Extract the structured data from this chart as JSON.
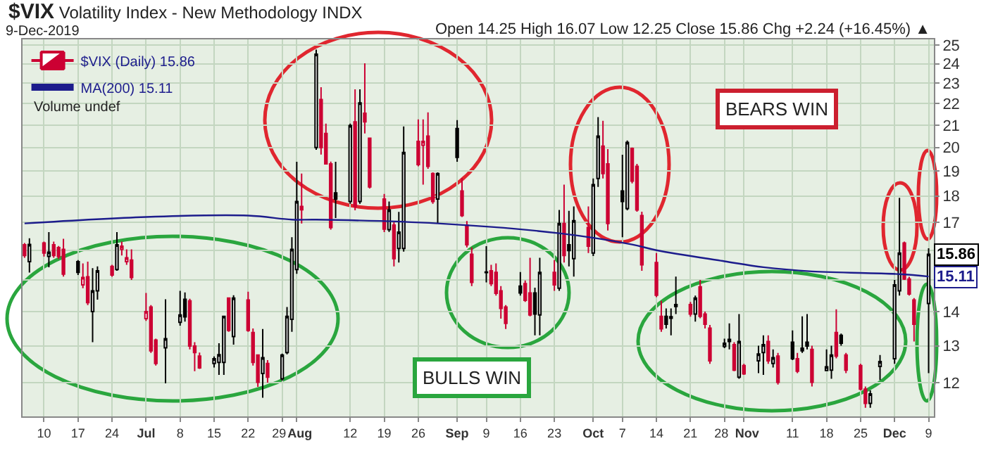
{
  "chart_data": {
    "type": "candlestick",
    "title": "$VIX Volatility Index - New Methodology INDX",
    "subtitle": "9-Dec-2019",
    "x": [
      "2019-06-06",
      "2019-06-07",
      "2019-06-10",
      "2019-06-11",
      "2019-06-12",
      "2019-06-13",
      "2019-06-14",
      "2019-06-17",
      "2019-06-18",
      "2019-06-19",
      "2019-06-20",
      "2019-06-21",
      "2019-06-24",
      "2019-06-25",
      "2019-06-26",
      "2019-06-27",
      "2019-06-28",
      "2019-07-01",
      "2019-07-02",
      "2019-07-03",
      "2019-07-05",
      "2019-07-08",
      "2019-07-09",
      "2019-07-10",
      "2019-07-11",
      "2019-07-12",
      "2019-07-15",
      "2019-07-16",
      "2019-07-17",
      "2019-07-18",
      "2019-07-19",
      "2019-07-22",
      "2019-07-23",
      "2019-07-24",
      "2019-07-25",
      "2019-07-26",
      "2019-07-29",
      "2019-07-30",
      "2019-07-31",
      "2019-08-01",
      "2019-08-02",
      "2019-08-05",
      "2019-08-06",
      "2019-08-07",
      "2019-08-08",
      "2019-08-09",
      "2019-08-12",
      "2019-08-13",
      "2019-08-14",
      "2019-08-15",
      "2019-08-16",
      "2019-08-19",
      "2019-08-20",
      "2019-08-21",
      "2019-08-22",
      "2019-08-23",
      "2019-08-26",
      "2019-08-27",
      "2019-08-28",
      "2019-08-29",
      "2019-08-30",
      "2019-09-03",
      "2019-09-04",
      "2019-09-05",
      "2019-09-06",
      "2019-09-09",
      "2019-09-10",
      "2019-09-11",
      "2019-09-12",
      "2019-09-13",
      "2019-09-16",
      "2019-09-17",
      "2019-09-18",
      "2019-09-19",
      "2019-09-20",
      "2019-09-23",
      "2019-09-24",
      "2019-09-25",
      "2019-09-26",
      "2019-09-27",
      "2019-09-30",
      "2019-10-01",
      "2019-10-02",
      "2019-10-03",
      "2019-10-04",
      "2019-10-07",
      "2019-10-08",
      "2019-10-09",
      "2019-10-10",
      "2019-10-11",
      "2019-10-14",
      "2019-10-15",
      "2019-10-16",
      "2019-10-17",
      "2019-10-18",
      "2019-10-21",
      "2019-10-22",
      "2019-10-23",
      "2019-10-24",
      "2019-10-25",
      "2019-10-28",
      "2019-10-29",
      "2019-10-30",
      "2019-10-31",
      "2019-11-01",
      "2019-11-04",
      "2019-11-05",
      "2019-11-06",
      "2019-11-07",
      "2019-11-08",
      "2019-11-11",
      "2019-11-12",
      "2019-11-13",
      "2019-11-14",
      "2019-11-15",
      "2019-11-18",
      "2019-11-19",
      "2019-11-20",
      "2019-11-21",
      "2019-11-22",
      "2019-11-25",
      "2019-11-26",
      "2019-11-27",
      "2019-11-29",
      "2019-12-02",
      "2019-12-03",
      "2019-12-04",
      "2019-12-05",
      "2019-12-06",
      "2019-12-09"
    ],
    "series": [
      {
        "type": "candlestick",
        "name": "$VIX (Daily) 15.86",
        "ohlc": [
          [
            16.19,
            16.25,
            15.74,
            15.82
          ],
          [
            15.61,
            16.42,
            15.24,
            16.2
          ],
          [
            16.25,
            16.3,
            15.78,
            15.9
          ],
          [
            15.79,
            16.64,
            15.42,
            15.93
          ],
          [
            16.19,
            16.3,
            15.74,
            15.82
          ],
          [
            16.09,
            16.15,
            15.7,
            15.78
          ],
          [
            16.03,
            16.4,
            15.11,
            15.19
          ],
          [
            15.61,
            15.66,
            15.16,
            15.25
          ],
          [
            14.84,
            15.55,
            14.73,
            15.08
          ],
          [
            15.1,
            15.61,
            14.2,
            14.28
          ],
          [
            14.0,
            15.39,
            13.1,
            14.65
          ],
          [
            14.65,
            15.45,
            14.37,
            15.3
          ],
          [
            15.45,
            15.5,
            15.1,
            15.16
          ],
          [
            15.34,
            16.64,
            15.3,
            16.19
          ],
          [
            16.03,
            16.3,
            15.82,
            16.14
          ],
          [
            15.61,
            16.03,
            15.5,
            15.74
          ],
          [
            15.66,
            16.03,
            15.0,
            15.08
          ],
          [
            13.79,
            14.58,
            13.72,
            14.0
          ],
          [
            14.14,
            14.2,
            12.8,
            12.86
          ],
          [
            13.16,
            13.2,
            12.45,
            12.51
          ],
          [
            12.94,
            14.38,
            11.98,
            13.2
          ],
          [
            13.68,
            14.65,
            13.58,
            13.9
          ],
          [
            14.38,
            14.6,
            13.7,
            13.84
          ],
          [
            14.33,
            14.4,
            12.9,
            12.99
          ],
          [
            12.99,
            13.1,
            12.3,
            12.81
          ],
          [
            12.71,
            12.81,
            12.36,
            12.39
          ],
          [
            12.51,
            12.7,
            12.4,
            12.64
          ],
          [
            12.54,
            13.07,
            12.2,
            12.75
          ],
          [
            12.54,
            13.86,
            12.2,
            13.86
          ],
          [
            14.42,
            14.42,
            13.4,
            13.44
          ],
          [
            13.26,
            14.51,
            13.03,
            14.42
          ],
          [
            14.36,
            14.62,
            13.4,
            13.44
          ],
          [
            13.38,
            13.5,
            12.45,
            12.54
          ],
          [
            12.74,
            12.74,
            11.89,
            12.01
          ],
          [
            12.24,
            13.48,
            11.61,
            12.67
          ],
          [
            12.51,
            12.6,
            12.0,
            12.14
          ],
          [
            12.1,
            12.78,
            12.05,
            12.74
          ],
          [
            12.81,
            14.14,
            12.76,
            13.86
          ],
          [
            13.77,
            16.46,
            13.4,
            16.03
          ],
          [
            15.34,
            19.39,
            15.2,
            17.79
          ],
          [
            17.6,
            18.9,
            16.96,
            17.47
          ],
          [
            20.0,
            24.75,
            19.9,
            24.5
          ],
          [
            22.2,
            22.8,
            19.7,
            20.0
          ],
          [
            20.62,
            21.07,
            19.27,
            19.3
          ],
          [
            19.3,
            19.4,
            16.73,
            16.81
          ],
          [
            18.12,
            19.39,
            17.16,
            17.88
          ],
          [
            17.79,
            21.07,
            17.7,
            20.98
          ],
          [
            21.15,
            22.7,
            17.45,
            17.6
          ],
          [
            17.79,
            22.7,
            17.7,
            22.04
          ],
          [
            21.55,
            24.02,
            20.62,
            21.15
          ],
          [
            20.41,
            20.41,
            18.3,
            18.36
          ],
          [
            17.88,
            18.08,
            16.64,
            16.75
          ],
          [
            16.73,
            17.79,
            16.65,
            17.46
          ],
          [
            16.9,
            17.0,
            15.45,
            15.71
          ],
          [
            16.06,
            17.39,
            15.58,
            16.64
          ],
          [
            16.06,
            20.94,
            15.95,
            19.79
          ],
          [
            20.27,
            21.26,
            19.2,
            19.27
          ],
          [
            20.1,
            21.26,
            18.45,
            20.27
          ],
          [
            20.5,
            21.59,
            19.1,
            19.2
          ],
          [
            18.9,
            18.95,
            17.7,
            17.79
          ],
          [
            17.88,
            18.95,
            16.96,
            18.9
          ],
          [
            20.84,
            21.23,
            19.39,
            19.58
          ],
          [
            18.2,
            18.72,
            17.2,
            17.25
          ],
          [
            16.9,
            17.05,
            16.1,
            16.19
          ],
          [
            15.86,
            16.1,
            14.8,
            14.92
          ],
          [
            15.26,
            16.14,
            14.92,
            15.24
          ],
          [
            15.3,
            15.5,
            14.8,
            14.88
          ],
          [
            15.25,
            15.55,
            14.5,
            14.57
          ],
          [
            14.65,
            14.8,
            13.79,
            14.1
          ],
          [
            14.14,
            14.2,
            13.48,
            13.65
          ],
          [
            14.8,
            15.26,
            14.5,
            14.58
          ],
          [
            14.88,
            14.98,
            14.3,
            14.35
          ],
          [
            14.58,
            15.74,
            13.86,
            13.9
          ],
          [
            14.58,
            14.75,
            13.3,
            13.93
          ],
          [
            13.9,
            15.74,
            13.3,
            15.25
          ],
          [
            15.25,
            15.66,
            14.65,
            14.84
          ],
          [
            14.73,
            17.46,
            14.65,
            16.96
          ],
          [
            16.96,
            18.45,
            15.58,
            15.82
          ],
          [
            16.19,
            17.43,
            15.45,
            15.99
          ],
          [
            15.71,
            17.6,
            15.11,
            17.06
          ],
          [
            16.81,
            17.6,
            15.9,
            16.14
          ],
          [
            15.9,
            18.7,
            15.8,
            18.45
          ],
          [
            18.7,
            21.37,
            18.36,
            20.5
          ],
          [
            20.06,
            21.2,
            18.7,
            18.9
          ],
          [
            19.3,
            19.93,
            16.7,
            16.96
          ],
          [
            18.2,
            19.69,
            16.46,
            17.79
          ],
          [
            17.52,
            20.31,
            17.45,
            20.22
          ],
          [
            19.96,
            20.0,
            18.5,
            18.59
          ],
          [
            19.2,
            19.3,
            17.4,
            17.46
          ],
          [
            17.25,
            17.4,
            15.3,
            15.5
          ],
          [
            15.58,
            15.9,
            14.45,
            14.51
          ],
          [
            13.86,
            14.33,
            13.4,
            13.49
          ],
          [
            13.86,
            14.1,
            13.5,
            13.62
          ],
          [
            13.85,
            14.1,
            13.3,
            13.8
          ],
          [
            14.16,
            15.11,
            13.93,
            14.22
          ],
          [
            14.22,
            14.3,
            13.85,
            13.93
          ],
          [
            13.93,
            14.5,
            13.7,
            14.42
          ],
          [
            14.78,
            15.0,
            13.8,
            13.86
          ],
          [
            13.93,
            14.0,
            13.5,
            13.62
          ],
          [
            13.51,
            13.6,
            12.5,
            12.58
          ],
          [
            12.98,
            13.2,
            12.93,
            13.07
          ],
          [
            13.12,
            13.65,
            12.9,
            13.18
          ],
          [
            13.03,
            13.1,
            12.3,
            12.33
          ],
          [
            12.14,
            13.93,
            12.1,
            13.12
          ],
          [
            12.45,
            12.5,
            12.2,
            12.23
          ],
          [
            12.58,
            13.0,
            12.25,
            12.77
          ],
          [
            12.81,
            13.3,
            12.2,
            13.03
          ],
          [
            13.12,
            13.3,
            12.5,
            12.58
          ],
          [
            12.51,
            12.9,
            12.4,
            12.67
          ],
          [
            12.71,
            12.8,
            11.95,
            12.01
          ],
          [
            13.1,
            13.44,
            12.6,
            12.64
          ],
          [
            12.64,
            12.8,
            12.25,
            12.3
          ],
          [
            12.86,
            13.86,
            12.8,
            12.93
          ],
          [
            13.1,
            13.93,
            12.9,
            12.99
          ],
          [
            12.9,
            13.0,
            11.9,
            12.01
          ],
          [
            12.32,
            12.9,
            12.3,
            12.42
          ],
          [
            12.33,
            13.0,
            12.1,
            12.74
          ],
          [
            13.38,
            14.07,
            12.65,
            12.71
          ],
          [
            13.3,
            13.35,
            13.0,
            13.07
          ],
          [
            12.74,
            12.8,
            12.25,
            12.33
          ],
          [
            12.45,
            12.5,
            11.8,
            11.83
          ],
          [
            11.83,
            11.9,
            11.36,
            11.47
          ],
          [
            11.47,
            11.8,
            11.36,
            11.71
          ],
          [
            12.43,
            12.74,
            12.07,
            12.56
          ],
          [
            12.64,
            15.0,
            12.5,
            14.84
          ],
          [
            14.65,
            17.93,
            14.5,
            15.9
          ],
          [
            16.25,
            16.3,
            15.0,
            15.03
          ],
          [
            15.03,
            15.1,
            14.5,
            14.55
          ],
          [
            14.36,
            14.42,
            13.12,
            13.62
          ],
          [
            14.25,
            16.07,
            12.25,
            15.86
          ]
        ],
        "colors": [
          "#cc0033",
          "#000000",
          "#cc0033",
          "#000000",
          "#cc0033",
          "#cc0033",
          "#cc0033",
          "#000000",
          "#cc0033",
          "#cc0033",
          "#000000",
          "#000000",
          "#cc0033",
          "#000000",
          "#cc0033",
          "#cc0033",
          "#cc0033",
          "#cc0033",
          "#cc0033",
          "#cc0033",
          "#000000",
          "#000000",
          "#000000",
          "#cc0033",
          "#cc0033",
          "#cc0033",
          "#000000",
          "#000000",
          "#000000",
          "#cc0033",
          "#000000",
          "#cc0033",
          "#cc0033",
          "#cc0033",
          "#000000",
          "#cc0033",
          "#000000",
          "#000000",
          "#000000",
          "#000000",
          "#cc0033",
          "#000000",
          "#cc0033",
          "#cc0033",
          "#cc0033",
          "#000000",
          "#000000",
          "#cc0033",
          "#000000",
          "#cc0033",
          "#cc0033",
          "#cc0033",
          "#000000",
          "#cc0033",
          "#000000",
          "#000000",
          "#cc0033",
          "#cc0033",
          "#cc0033",
          "#cc0033",
          "#000000",
          "#000000",
          "#cc0033",
          "#cc0033",
          "#cc0033",
          "#000000",
          "#cc0033",
          "#cc0033",
          "#cc0033",
          "#cc0033",
          "#000000",
          "#cc0033",
          "#cc0033",
          "#000000",
          "#000000",
          "#cc0033",
          "#000000",
          "#cc0033",
          "#000000",
          "#000000",
          "#cc0033",
          "#000000",
          "#000000",
          "#cc0033",
          "#cc0033",
          "#000000",
          "#000000",
          "#cc0033",
          "#cc0033",
          "#cc0033",
          "#cc0033",
          "#cc0033",
          "#000000",
          "#000000",
          "#000000",
          "#cc0033",
          "#000000",
          "#cc0033",
          "#cc0033",
          "#cc0033",
          "#000000",
          "#000000",
          "#cc0033",
          "#000000",
          "#cc0033",
          "#000000",
          "#000000",
          "#cc0033",
          "#000000",
          "#cc0033",
          "#000000",
          "#cc0033",
          "#000000",
          "#000000",
          "#cc0033",
          "#000000",
          "#000000",
          "#cc0033",
          "#000000",
          "#cc0033",
          "#cc0033",
          "#cc0033",
          "#000000",
          "#000000",
          "#000000",
          "#000000",
          "#cc0033",
          "#cc0033",
          "#cc0033",
          "#000000"
        ]
      },
      {
        "type": "line",
        "name": "MA(200) 15.11",
        "color": "#1c1c8c",
        "x": [
          "2019-06-06",
          "2019-07-01",
          "2019-07-22",
          "2019-07-31",
          "2019-08-05",
          "2019-08-30",
          "2019-09-24",
          "2019-10-09",
          "2019-10-14",
          "2019-10-28",
          "2019-11-05",
          "2019-11-15",
          "2019-12-03",
          "2019-12-09"
        ],
        "values": [
          16.96,
          17.2,
          17.25,
          17.1,
          17.1,
          16.96,
          16.6,
          16.2,
          16.0,
          15.62,
          15.42,
          15.28,
          15.19,
          15.11
        ]
      }
    ],
    "log": "y",
    "ylim": [
      11.15,
      25.3
    ],
    "yticks": [
      12,
      13,
      14,
      {
        "value": 15,
        "label": null
      },
      {
        "value": 16,
        "label": null
      },
      17,
      18,
      19,
      20,
      21,
      22,
      23,
      24,
      25
    ],
    "xlim": [
      "2019-06-05T14:00",
      "2019-12-10T02:00"
    ],
    "xticks": [
      {
        "value": "2019-06-10",
        "label": "10"
      },
      {
        "value": "2019-06-17",
        "label": "17"
      },
      {
        "value": "2019-06-24",
        "label": "24"
      },
      {
        "value": "2019-07-01",
        "label": "Jul"
      },
      {
        "value": "2019-07-08",
        "label": "8"
      },
      {
        "value": "2019-07-15",
        "label": "15"
      },
      {
        "value": "2019-07-22",
        "label": "22"
      },
      {
        "value": "2019-07-29",
        "label": "29"
      },
      {
        "value": "2019-08-01",
        "label": "Aug"
      },
      {
        "value": "2019-08-12",
        "label": "12"
      },
      {
        "value": "2019-08-19",
        "label": "19"
      },
      {
        "value": "2019-08-26",
        "label": "26"
      },
      {
        "value": "2019-09-03",
        "label": "Sep"
      },
      {
        "value": "2019-09-09",
        "label": "9"
      },
      {
        "value": "2019-09-16",
        "label": "16"
      },
      {
        "value": "2019-09-23",
        "label": "23"
      },
      {
        "value": "2019-10-01",
        "label": "Oct"
      },
      {
        "value": "2019-10-07",
        "label": "7"
      },
      {
        "value": "2019-10-14",
        "label": "14"
      },
      {
        "value": "2019-10-21",
        "label": "21"
      },
      {
        "value": "2019-10-28",
        "label": "28"
      },
      {
        "value": "2019-11-01",
        "label": "Nov"
      },
      {
        "value": "2019-11-11",
        "label": "11"
      },
      {
        "value": "2019-11-18",
        "label": "18"
      },
      {
        "value": "2019-11-25",
        "label": "25"
      },
      {
        "value": "2019-12-02",
        "label": "Dec"
      },
      {
        "value": "2019-12-09",
        "label": "9"
      }
    ],
    "grid": true,
    "legend": "top left",
    "annotations": [
      "Open 14.25 High 16.07 Low 12.25 Close 15.86 Chg +2.24 (+16.45%) ▲",
      {
        "text": "15.86",
        "y": 15.86
      },
      {
        "text": "15.11",
        "y": 15.11
      },
      "Volume undef",
      "BEARS WIN",
      "BULLS WIN"
    ]
  }
}
